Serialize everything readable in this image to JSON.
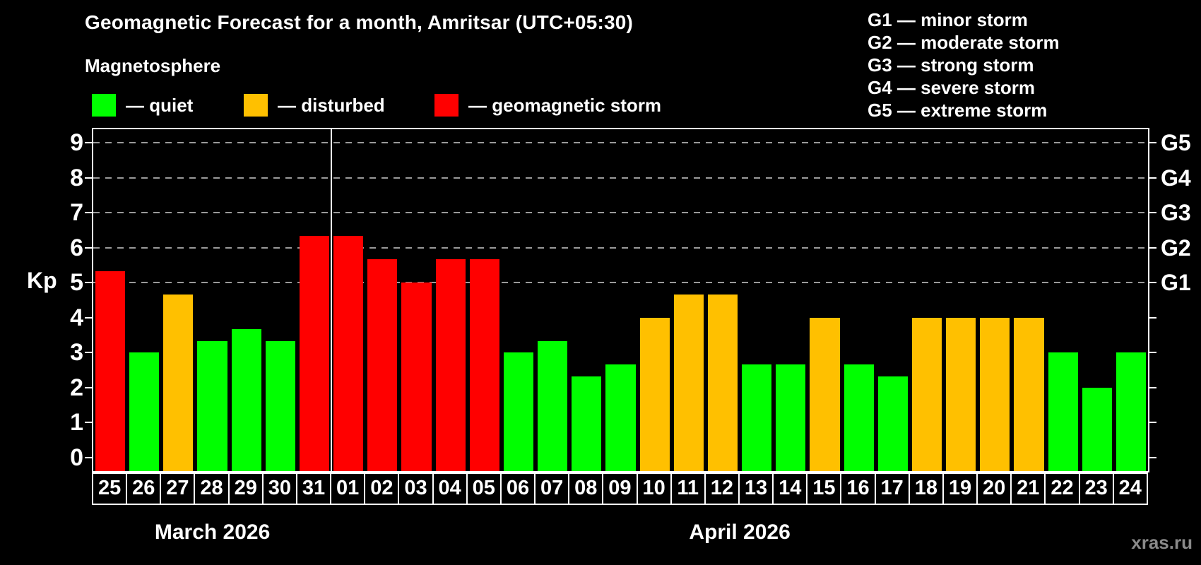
{
  "watermark": "xras.ru",
  "colors": {
    "background": "#000000",
    "axis": "#ffffff",
    "grid": "#9a9a9a",
    "watermark": "#8a8a8a"
  },
  "chart_data": {
    "type": "bar",
    "title": "Geomagnetic Forecast for a month, Amritsar (UTC+05:30)",
    "subtitle": "Magnetosphere",
    "ylabel": "Kp",
    "ylim": [
      -0.4,
      9.4
    ],
    "yticks": [
      0,
      1,
      2,
      3,
      4,
      5,
      6,
      7,
      8,
      9
    ],
    "gridlines": [
      5,
      6,
      7,
      8,
      9
    ],
    "grid": "horizontal dashed lines at storm levels G1-G5",
    "legend_position": "top",
    "legend": [
      {
        "status": "quiet",
        "label": "— quiet",
        "color": "#00ff00"
      },
      {
        "status": "disturbed",
        "label": "— disturbed",
        "color": "#ffc000"
      },
      {
        "status": "storm",
        "label": "— geomagnetic storm",
        "color": "#ff0000"
      }
    ],
    "g_scale_legend": [
      "G1 — minor storm",
      "G2 — moderate storm",
      "G3 — strong storm",
      "G4 — severe storm",
      "G5 — extreme storm"
    ],
    "right_axis_labels": [
      {
        "level": 5,
        "label": "G1"
      },
      {
        "level": 6,
        "label": "G2"
      },
      {
        "level": 7,
        "label": "G3"
      },
      {
        "level": 8,
        "label": "G4"
      },
      {
        "level": 9,
        "label": "G5"
      }
    ],
    "months": [
      {
        "label": "March 2026",
        "days": 7
      },
      {
        "label": "April 2026",
        "days": 24
      }
    ],
    "categories": [
      "25",
      "26",
      "27",
      "28",
      "29",
      "30",
      "31",
      "01",
      "02",
      "03",
      "04",
      "05",
      "06",
      "07",
      "08",
      "09",
      "10",
      "11",
      "12",
      "13",
      "14",
      "15",
      "16",
      "17",
      "18",
      "19",
      "20",
      "21",
      "22",
      "23",
      "24"
    ],
    "series": [
      {
        "name": "Kp forecast",
        "values": [
          5.33,
          3.0,
          4.67,
          3.33,
          3.67,
          3.33,
          6.33,
          6.33,
          5.67,
          5.0,
          5.67,
          5.67,
          3.0,
          3.33,
          2.33,
          2.67,
          4.0,
          4.67,
          4.67,
          2.67,
          2.67,
          4.0,
          2.67,
          2.33,
          4.0,
          4.0,
          4.0,
          4.0,
          3.0,
          2.0,
          3.0
        ],
        "statuses": [
          "storm",
          "quiet",
          "disturbed",
          "quiet",
          "quiet",
          "quiet",
          "storm",
          "storm",
          "storm",
          "storm",
          "storm",
          "storm",
          "quiet",
          "quiet",
          "quiet",
          "quiet",
          "disturbed",
          "disturbed",
          "disturbed",
          "quiet",
          "quiet",
          "disturbed",
          "quiet",
          "quiet",
          "disturbed",
          "disturbed",
          "disturbed",
          "disturbed",
          "quiet",
          "quiet",
          "quiet"
        ]
      }
    ],
    "status_colors": {
      "quiet": "#00ff00",
      "disturbed": "#ffc000",
      "storm": "#ff0000"
    }
  }
}
